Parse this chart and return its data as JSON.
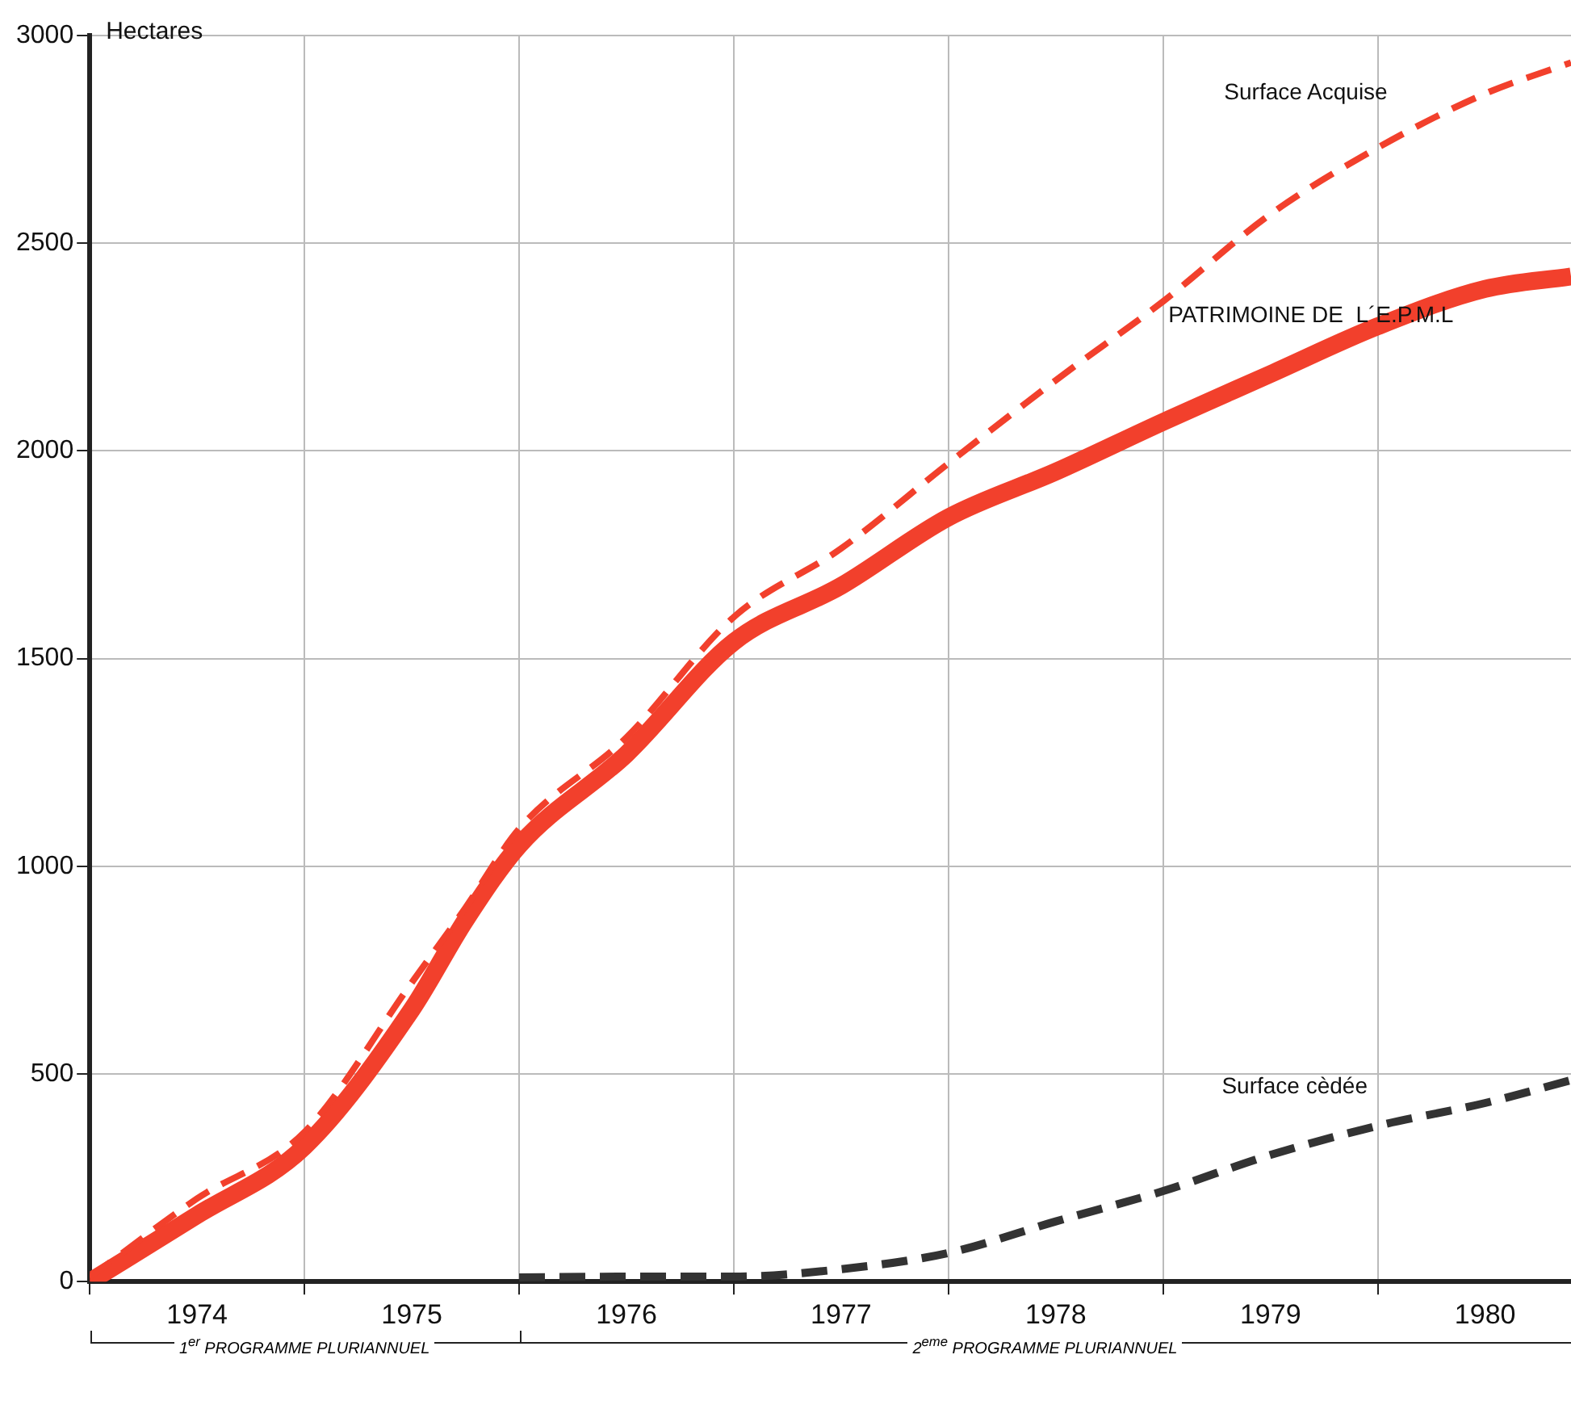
{
  "chart_data": {
    "type": "line",
    "ylabel": "Hectares",
    "x": [
      1974,
      1974.5,
      1975,
      1975.5,
      1975.75,
      1976,
      1976.5,
      1977,
      1977.5,
      1978,
      1978.5,
      1979,
      1979.5,
      1980,
      1980.5,
      1980.9
    ],
    "series": [
      {
        "name": "Surface Acquise",
        "color": "#f2402c",
        "line_style": "dashed",
        "values": [
          10,
          200,
          360,
          720,
          900,
          1090,
          1310,
          1600,
          1765,
          1970,
          2170,
          2360,
          2570,
          2730,
          2860,
          2935
        ]
      },
      {
        "name": "PATRIMOINE DE  L´E.P.M.L",
        "color": "#f2402c",
        "line_style": "solid",
        "values": [
          0,
          160,
          325,
          655,
          870,
          1050,
          1270,
          1540,
          1675,
          1840,
          1950,
          2070,
          2185,
          2300,
          2390,
          2420
        ]
      },
      {
        "name": "Surface cèdée",
        "color": "#333333",
        "line_style": "dashed",
        "x": [
          1976,
          1976.5,
          1977,
          1977.5,
          1978,
          1978.5,
          1979,
          1979.5,
          1980,
          1980.5,
          1980.9
        ],
        "values": [
          10,
          12,
          12,
          30,
          69,
          145,
          218,
          305,
          375,
          430,
          485
        ]
      }
    ],
    "xlim": [
      1974,
      1980.9
    ],
    "xticks": [
      {
        "value": 1974,
        "label": null
      },
      {
        "value": 1974.5,
        "label": "1974"
      },
      {
        "value": 1975,
        "label": null
      },
      {
        "value": 1975.5,
        "label": "1975"
      },
      {
        "value": 1976,
        "label": null
      },
      {
        "value": 1976.5,
        "label": "1976"
      },
      {
        "value": 1977,
        "label": null
      },
      {
        "value": 1977.5,
        "label": "1977"
      },
      {
        "value": 1978,
        "label": null
      },
      {
        "value": 1978.5,
        "label": "1978"
      },
      {
        "value": 1979,
        "label": null
      },
      {
        "value": 1979.5,
        "label": "1979"
      },
      {
        "value": 1980,
        "label": null
      },
      {
        "value": 1980.5,
        "label": "1980"
      }
    ],
    "ylim": [
      0,
      3000
    ],
    "yticks": [
      0,
      500,
      1000,
      1500,
      2000,
      2500,
      3000
    ],
    "grid": true,
    "legend": false,
    "marker": "none",
    "annotations": [
      "1$^{er}$ PROGRAMME PLURIANNUEL",
      "2$^{eme}$ PROGRAMME PLURIANNUEL"
    ]
  }
}
